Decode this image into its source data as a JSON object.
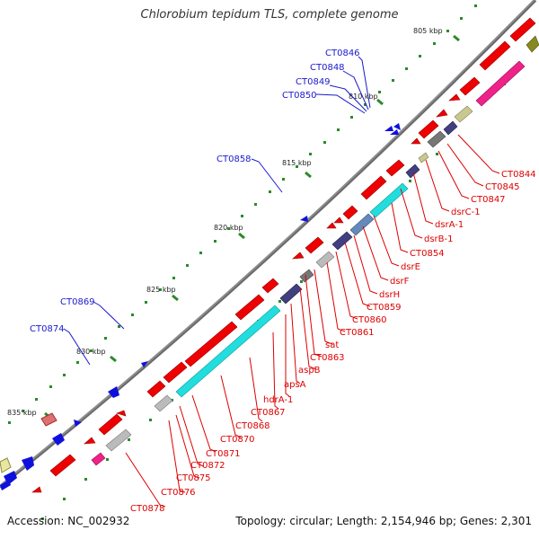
{
  "title": "Chlorobium tepidum TLS, complete genome",
  "accession": "Accession: NC_002932",
  "topology": "Topology: circular; Length: 2,154,946 bp; Genes: 2,301",
  "colors": {
    "forward_label": "#1a1acc",
    "reverse_label": "#dd0000",
    "gene": "#ee0000",
    "backbone": "#777777",
    "tick": "#228822"
  },
  "scale_labels": [
    "805 kbp",
    "810 kbp",
    "815 kbp",
    "820 kbp",
    "825 kbp",
    "830 kbp",
    "835 kbp"
  ],
  "forward_labels": [
    "CT0846",
    "CT0848",
    "CT0849",
    "CT0850",
    "CT0858",
    "CT0869",
    "CT0874"
  ],
  "reverse_labels": [
    "CT0844",
    "CT0845",
    "CT0847",
    "dsrC-1",
    "dsrA-1",
    "dsrB-1",
    "CT0854",
    "dsrE",
    "dsrF",
    "dsrH",
    "CT0859",
    "CT0860",
    "CT0861",
    "sat",
    "CT0863",
    "aspB",
    "apsA",
    "hdrA-1",
    "CT0867",
    "CT0868",
    "CT0870",
    "CT0871",
    "CT0872",
    "CT0875",
    "CT0876",
    "CT0878"
  ]
}
